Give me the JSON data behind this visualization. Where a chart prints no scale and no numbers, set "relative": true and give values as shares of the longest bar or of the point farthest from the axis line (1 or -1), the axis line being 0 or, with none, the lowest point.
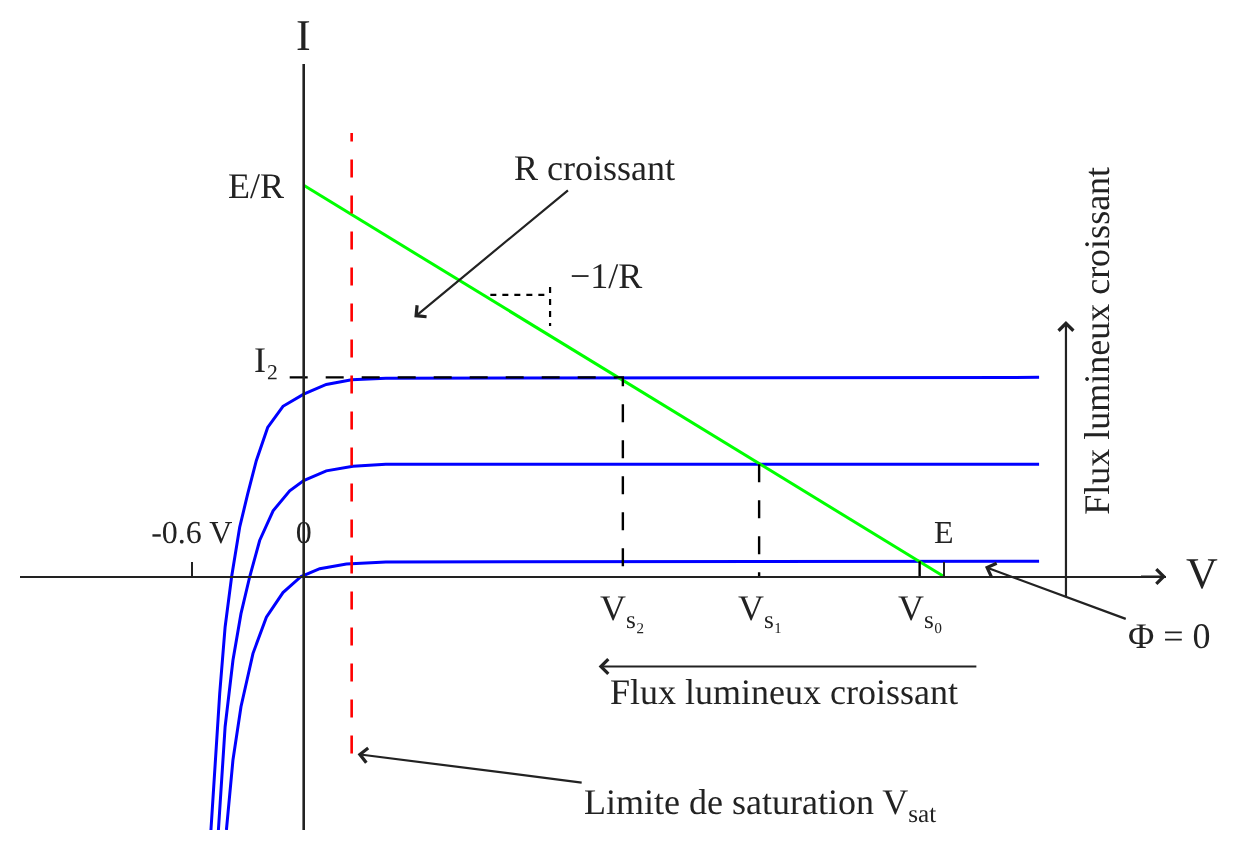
{
  "chart_data": {
    "type": "line",
    "relative": true,
    "xlabel": "V",
    "xlim": [
      -1.52,
      4.62
    ],
    "xticks": [
      {
        "value": -0.6,
        "label": "-0.6 V"
      },
      0,
      {
        "value": 3.43,
        "label": "E"
      }
    ],
    "series": [
      {
        "color": "#0000ff",
        "x": [
          -0.497,
          -0.45,
          -0.421,
          -0.386,
          -0.343,
          -0.3,
          -0.254,
          -0.193,
          -0.111,
          0,
          0.121,
          0.257,
          0.44,
          3.94
        ],
        "values": [
          -0.648,
          -0.299,
          -0.129,
          0,
          0.126,
          0.211,
          0.296,
          0.381,
          0.435,
          0.466,
          0.491,
          0.503,
          0.507,
          0.509
        ]
      },
      {
        "color": "#0000ff",
        "x": [
          -0.457,
          -0.421,
          -0.379,
          -0.336,
          -0.289,
          -0.236,
          -0.164,
          -0.075,
          0,
          0.121,
          0.264,
          0.44,
          3.94
        ],
        "values": [
          -0.648,
          -0.384,
          -0.214,
          -0.095,
          0,
          0.092,
          0.168,
          0.219,
          0.245,
          0.27,
          0.282,
          0.287,
          0.287
        ]
      },
      {
        "color": "#0000ff",
        "x": [
          -0.414,
          -0.379,
          -0.336,
          -0.272,
          -0.2,
          -0.111,
          -0.014,
          0.086,
          0.229,
          0.44,
          3.94
        ],
        "values": [
          -0.648,
          -0.469,
          -0.333,
          -0.197,
          -0.104,
          -0.041,
          0,
          0.02,
          0.032,
          0.037,
          0.039
        ]
      },
      {
        "color": "#00ff00",
        "x": [
          0,
          3.43
        ],
        "values": [
          1,
          0
        ]
      },
      {
        "color": "#000000",
        "line_style": "dashed",
        "x": [
          -0.075,
          1.71,
          1.71
        ],
        "values": [
          0.509,
          0.509,
          0
        ]
      },
      {
        "color": "#000000",
        "line_style": "dashed",
        "x": [
          2.44,
          2.44
        ],
        "values": [
          0.287,
          0
        ]
      },
      {
        "color": "#000000",
        "line_style": "dashed",
        "x": [
          3.3,
          3.3
        ],
        "values": [
          0.039,
          0
        ]
      },
      {
        "color": "#000000",
        "line_style": "dotted",
        "x": [
          1.0,
          1.32
        ],
        "values": [
          0.72,
          0.72
        ]
      },
      {
        "color": "#000000",
        "line_style": "dotted",
        "x": [
          1.32,
          1.32
        ],
        "values": [
          0.74,
          0.64
        ]
      }
    ],
    "ref_lines": [
      {
        "axis": "x",
        "value": 0,
        "color": "#222222"
      },
      {
        "axis": "x",
        "value": 0.257,
        "label": "Limite de saturation V$_{sat}$",
        "color": "#ff0000",
        "line_style": "dashed"
      }
    ],
    "annotations": [
      "I",
      "E/R",
      "I₂",
      {
        "text": "V$_{s₂}$",
        "x": 1.71,
        "y": 0
      },
      {
        "text": "V$_{s₁}$",
        "x": 2.44,
        "y": 0
      },
      {
        "text": "V$_{s₀}$",
        "x": 3.3,
        "y": 0
      },
      "R croissant",
      "−1/R",
      "Flux lumineux croissant",
      "Flux lumineux croissant",
      "Φ = 0"
    ]
  }
}
